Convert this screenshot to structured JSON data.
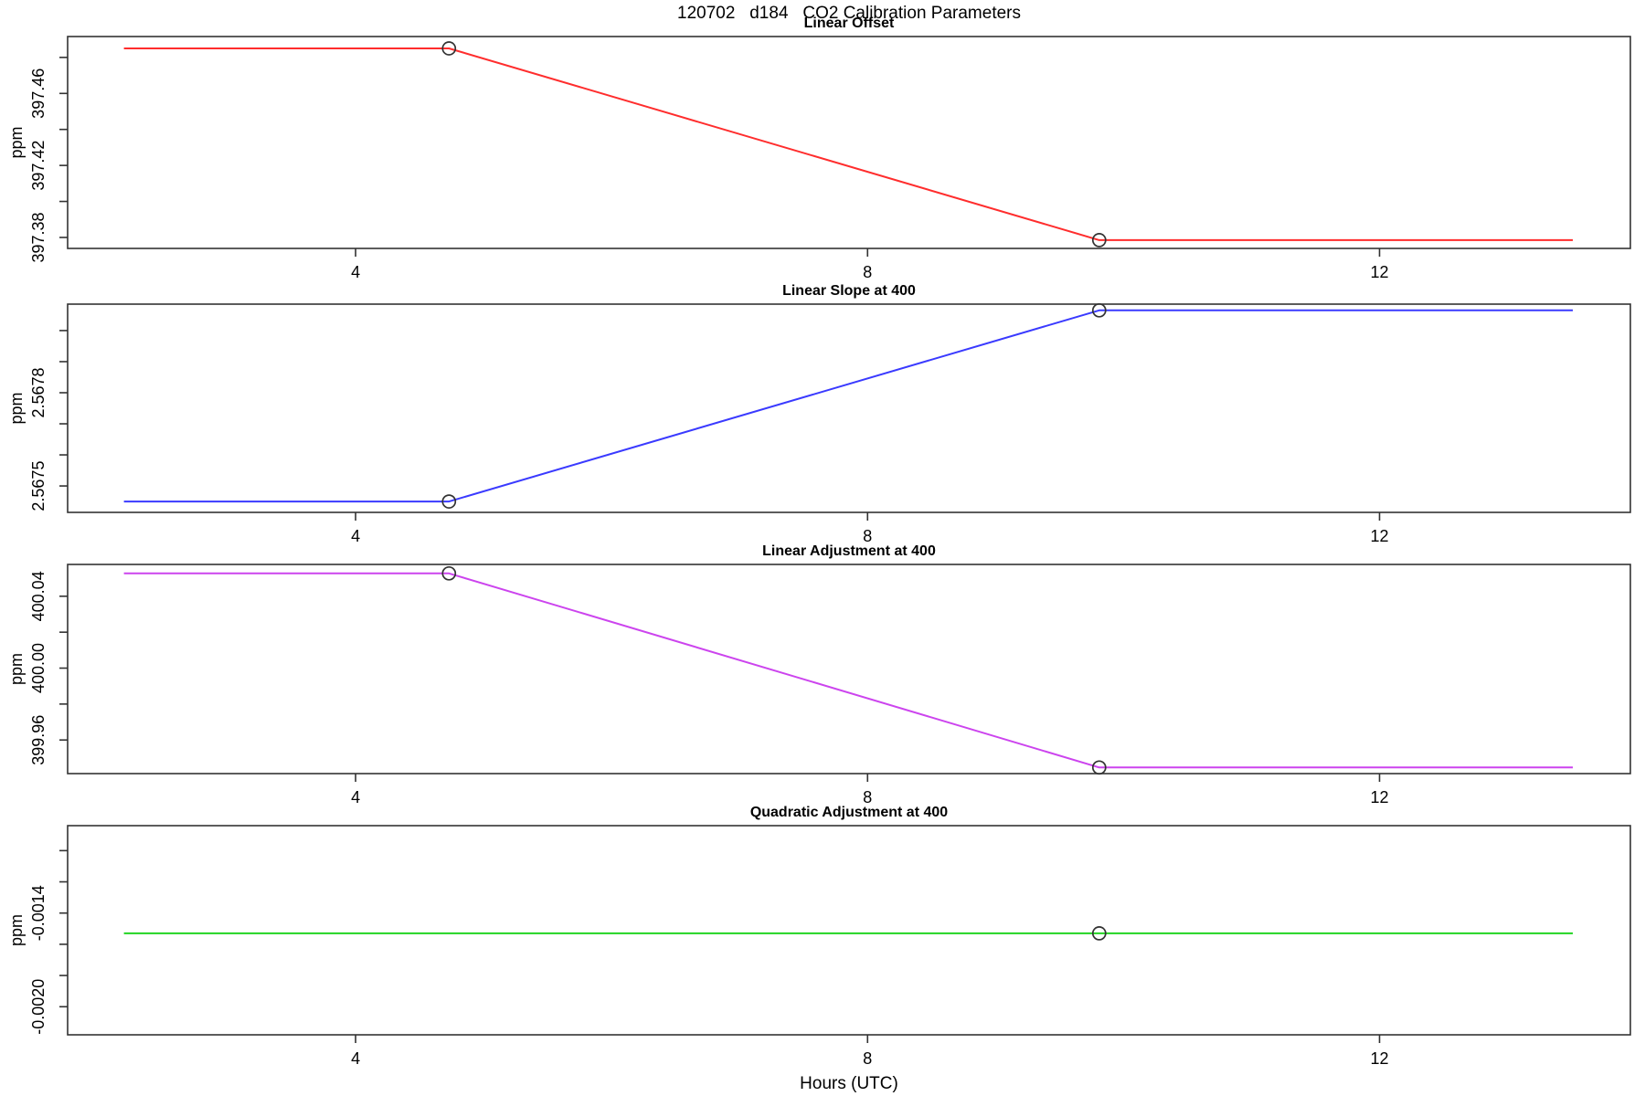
{
  "title": "120702   d184   CO2 Calibration Parameters",
  "xlabel": "Hours (UTC)",
  "axis_color": "#333333",
  "marker_color": "#333333",
  "chart_data": [
    {
      "type": "line",
      "title": "Linear Offset",
      "ylabel": "ppm",
      "color": "#ff2d2d",
      "xlim": [
        1.75,
        13.96
      ],
      "ylim": [
        397.3739,
        397.4916
      ],
      "xticks": [
        4,
        8,
        12
      ],
      "xtick_labels": [
        "4",
        "8",
        "12"
      ],
      "yticks": [
        397.38,
        397.4,
        397.42,
        397.44,
        397.46,
        397.48
      ],
      "ytick_labels": [
        "397.38",
        "",
        "397.42",
        "",
        "397.46",
        ""
      ],
      "points": [
        [
          2.19,
          397.485
        ],
        [
          4.73,
          397.485
        ],
        [
          9.81,
          397.3785
        ],
        [
          13.51,
          397.3785
        ]
      ],
      "markers": [
        [
          4.73,
          397.485
        ],
        [
          9.81,
          397.3785
        ]
      ]
    },
    {
      "type": "line",
      "title": "Linear Slope at 400",
      "ylabel": "ppm",
      "color": "#3a3aff",
      "xlim": [
        1.75,
        13.96
      ],
      "ylim": [
        2.567415,
        2.568085
      ],
      "xticks": [
        4,
        8,
        12
      ],
      "xtick_labels": [
        "4",
        "8",
        "12"
      ],
      "yticks": [
        2.5675,
        2.5676,
        2.5677,
        2.5678,
        2.5679,
        2.568
      ],
      "ytick_labels": [
        "2.5675",
        "",
        "",
        "2.5678",
        "",
        ""
      ],
      "points": [
        [
          2.19,
          2.56745
        ],
        [
          4.73,
          2.56745
        ],
        [
          9.81,
          2.568065
        ],
        [
          13.51,
          2.568065
        ]
      ],
      "markers": [
        [
          4.73,
          2.56745
        ],
        [
          9.81,
          2.568065
        ]
      ]
    },
    {
      "type": "line",
      "title": "Linear Adjustment at 400",
      "ylabel": "ppm",
      "color": "#cc44ee",
      "xlim": [
        1.75,
        13.96
      ],
      "ylim": [
        399.9413,
        400.0577
      ],
      "xticks": [
        4,
        8,
        12
      ],
      "xtick_labels": [
        "4",
        "8",
        "12"
      ],
      "yticks": [
        399.96,
        399.98,
        400.0,
        400.02,
        400.04
      ],
      "ytick_labels": [
        "399.96",
        "",
        "400.00",
        "",
        "400.04"
      ],
      "points": [
        [
          2.19,
          400.0527
        ],
        [
          4.73,
          400.0527
        ],
        [
          9.81,
          399.9447
        ],
        [
          13.51,
          399.9447
        ]
      ],
      "markers": [
        [
          4.73,
          400.0527
        ],
        [
          9.81,
          399.9447
        ]
      ]
    },
    {
      "type": "line",
      "title": "Quadratic Adjustment at 400",
      "ylabel": "ppm",
      "color": "#22d422",
      "xlim": [
        1.75,
        13.96
      ],
      "ylim": [
        -0.00218,
        -0.00084
      ],
      "xticks": [
        4,
        8,
        12
      ],
      "xtick_labels": [
        "4",
        "8",
        "12"
      ],
      "yticks": [
        -0.002,
        -0.0018,
        -0.0016,
        -0.0014,
        -0.0012,
        -0.001
      ],
      "ytick_labels": [
        "-0.0020",
        "",
        "",
        "-0.0014",
        "",
        ""
      ],
      "points": [
        [
          2.19,
          -0.00153
        ],
        [
          13.51,
          -0.00153
        ]
      ],
      "markers": [
        [
          9.81,
          -0.00153
        ]
      ]
    }
  ]
}
